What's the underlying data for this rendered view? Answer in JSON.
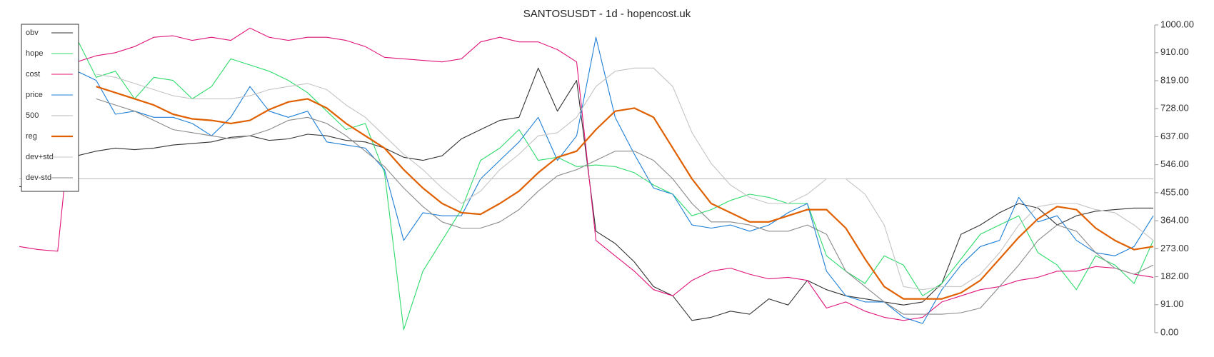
{
  "chart_data": {
    "type": "line",
    "title": "SANTOSUSDT - 1d - hopencost.uk",
    "ylim": [
      0,
      1000
    ],
    "yticks": [
      {
        "value": 0,
        "label": "0.00"
      },
      {
        "value": 91,
        "label": "91.00"
      },
      {
        "value": 182,
        "label": "182.00"
      },
      {
        "value": 273,
        "label": "273.00"
      },
      {
        "value": 364,
        "label": "364.00"
      },
      {
        "value": 455,
        "label": "455.00"
      },
      {
        "value": 546,
        "label": "546.00"
      },
      {
        "value": 637,
        "label": "637.00"
      },
      {
        "value": 728,
        "label": "728.00"
      },
      {
        "value": 819,
        "label": "819.00"
      },
      {
        "value": 910,
        "label": "910.00"
      },
      {
        "value": 1000,
        "label": "1000.00"
      }
    ],
    "legend": "top-left",
    "series": [
      {
        "name": "obv",
        "color": "#333333",
        "width": 1.1,
        "values": [
          475,
          470,
          465,
          575,
          590,
          600,
          595,
          600,
          610,
          615,
          620,
          635,
          640,
          625,
          630,
          645,
          640,
          625,
          620,
          600,
          570,
          560,
          575,
          630,
          660,
          690,
          700,
          860,
          720,
          820,
          330,
          290,
          230,
          150,
          120,
          40,
          50,
          70,
          60,
          110,
          90,
          170,
          140,
          120,
          110,
          100,
          90,
          100,
          160,
          320,
          350,
          390,
          420,
          405,
          350,
          380,
          395,
          400,
          405,
          405
        ]
      },
      {
        "name": "hope",
        "color": "#2edb6b",
        "width": 1.1,
        "values": [
          null,
          null,
          null,
          955,
          830,
          850,
          760,
          830,
          820,
          760,
          800,
          890,
          870,
          850,
          820,
          780,
          720,
          660,
          680,
          520,
          10,
          200,
          300,
          400,
          560,
          600,
          660,
          560,
          570,
          540,
          545,
          540,
          520,
          480,
          450,
          380,
          400,
          430,
          450,
          440,
          420,
          420,
          250,
          200,
          160,
          250,
          220,
          120,
          160,
          240,
          320,
          350,
          380,
          260,
          220,
          140,
          250,
          220,
          160,
          300
        ]
      },
      {
        "name": "cost",
        "color": "#e0157a",
        "width": 1.1,
        "values": [
          280,
          270,
          265,
          880,
          900,
          910,
          930,
          960,
          965,
          950,
          960,
          950,
          990,
          960,
          950,
          960,
          960,
          950,
          930,
          895,
          890,
          885,
          880,
          890,
          945,
          960,
          945,
          945,
          920,
          880,
          300,
          250,
          200,
          140,
          120,
          170,
          200,
          210,
          190,
          175,
          180,
          170,
          80,
          100,
          70,
          50,
          40,
          50,
          100,
          120,
          140,
          150,
          170,
          180,
          200,
          200,
          215,
          210,
          190,
          180
        ]
      },
      {
        "name": "price",
        "color": "#1e7fd6",
        "width": 1.1,
        "values": [
          null,
          null,
          null,
          850,
          820,
          710,
          720,
          700,
          700,
          680,
          640,
          700,
          800,
          720,
          700,
          720,
          620,
          610,
          600,
          530,
          300,
          390,
          380,
          380,
          500,
          560,
          620,
          700,
          560,
          640,
          960,
          700,
          580,
          470,
          450,
          350,
          340,
          350,
          330,
          350,
          390,
          420,
          200,
          120,
          100,
          100,
          50,
          30,
          140,
          220,
          280,
          300,
          440,
          360,
          380,
          300,
          260,
          250,
          280,
          380
        ]
      },
      {
        "name": "500",
        "color": "#b8b8b8",
        "width": 1.1,
        "values": [
          500,
          500,
          500,
          500,
          500,
          500,
          500,
          500,
          500,
          500,
          500,
          500,
          500,
          500,
          500,
          500,
          500,
          500,
          500,
          500,
          500,
          500,
          500,
          500,
          500,
          500,
          500,
          500,
          500,
          500,
          500,
          500,
          500,
          500,
          500,
          500,
          500,
          500,
          500,
          500,
          500,
          500,
          500,
          500,
          500,
          500,
          500,
          500,
          500,
          500,
          500,
          500,
          500,
          500,
          500,
          500,
          500,
          500,
          500,
          500
        ]
      },
      {
        "name": "reg",
        "color": "#e06000",
        "width": 2.2,
        "values": [
          null,
          null,
          null,
          null,
          800,
          780,
          760,
          740,
          710,
          695,
          690,
          680,
          690,
          725,
          750,
          760,
          730,
          680,
          640,
          600,
          530,
          470,
          420,
          390,
          385,
          420,
          460,
          520,
          570,
          590,
          660,
          720,
          730,
          700,
          600,
          500,
          420,
          390,
          360,
          360,
          380,
          400,
          400,
          340,
          240,
          150,
          110,
          110,
          110,
          130,
          170,
          240,
          310,
          370,
          410,
          400,
          340,
          300,
          270,
          280
        ]
      },
      {
        "name": "dev+std",
        "color": "#c4c4c4",
        "width": 1.1,
        "values": [
          null,
          null,
          null,
          null,
          840,
          830,
          810,
          790,
          770,
          760,
          760,
          760,
          770,
          790,
          800,
          810,
          790,
          740,
          700,
          640,
          580,
          530,
          470,
          420,
          460,
          530,
          580,
          640,
          650,
          700,
          800,
          850,
          860,
          860,
          800,
          650,
          550,
          480,
          440,
          420,
          420,
          450,
          500,
          500,
          450,
          350,
          150,
          140,
          150,
          150,
          190,
          260,
          350,
          410,
          420,
          420,
          400,
          390,
          350,
          300
        ]
      },
      {
        "name": "dev-std",
        "color": "#8a8a8a",
        "width": 1.1,
        "values": [
          null,
          null,
          null,
          null,
          760,
          740,
          720,
          690,
          660,
          650,
          640,
          630,
          640,
          660,
          690,
          700,
          680,
          640,
          590,
          540,
          470,
          410,
          360,
          340,
          340,
          360,
          400,
          460,
          510,
          530,
          560,
          590,
          590,
          560,
          500,
          420,
          360,
          360,
          350,
          330,
          330,
          350,
          320,
          200,
          150,
          100,
          60,
          60,
          60,
          65,
          80,
          150,
          220,
          300,
          350,
          330,
          260,
          210,
          190,
          220
        ]
      }
    ]
  }
}
